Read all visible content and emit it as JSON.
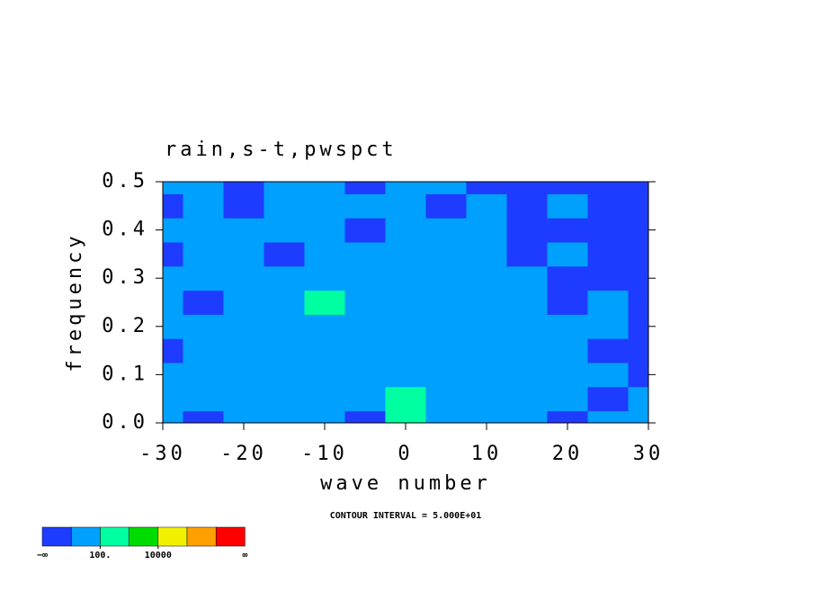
{
  "chart_data": {
    "type": "contour",
    "title": "rain,s-t,pwspct",
    "xlabel": "wave number",
    "ylabel": "frequency",
    "annotation": "CONTOUR INTERVAL = 5.000E+01",
    "x": [
      -30,
      -25,
      -20,
      -15,
      -10,
      -5,
      0,
      5,
      10,
      15,
      20,
      25,
      30
    ],
    "y": [
      0,
      0.05,
      0.1,
      0.15,
      0.2,
      0.25,
      0.3,
      0.35,
      0.4,
      0.45,
      0.5
    ],
    "z": [
      [
        30,
        5,
        40,
        30,
        40,
        5,
        150,
        40,
        40,
        40,
        5,
        40,
        30
      ],
      [
        40,
        40,
        40,
        40,
        40,
        40,
        150,
        40,
        40,
        40,
        40,
        5,
        40
      ],
      [
        40,
        40,
        40,
        40,
        40,
        40,
        40,
        80,
        40,
        40,
        40,
        40,
        5
      ],
      [
        5,
        40,
        40,
        40,
        40,
        40,
        40,
        40,
        40,
        40,
        40,
        5,
        5
      ],
      [
        40,
        40,
        40,
        40,
        40,
        40,
        80,
        40,
        40,
        40,
        40,
        40,
        5
      ],
      [
        40,
        5,
        40,
        40,
        150,
        40,
        40,
        40,
        40,
        40,
        5,
        40,
        5
      ],
      [
        40,
        40,
        80,
        40,
        40,
        40,
        40,
        40,
        40,
        40,
        5,
        5,
        5
      ],
      [
        5,
        40,
        40,
        5,
        40,
        40,
        40,
        40,
        40,
        5,
        40,
        5,
        5
      ],
      [
        40,
        80,
        40,
        40,
        40,
        5,
        40,
        40,
        40,
        5,
        5,
        5,
        5
      ],
      [
        5,
        40,
        5,
        40,
        40,
        40,
        40,
        5,
        40,
        5,
        40,
        5,
        5
      ],
      [
        40,
        40,
        5,
        40,
        40,
        5,
        40,
        40,
        5,
        5,
        5,
        5,
        5
      ]
    ],
    "xlim": [
      -30,
      30
    ],
    "ylim": [
      0,
      0.5
    ],
    "xticks": [
      -30,
      -20,
      -10,
      0,
      10,
      20,
      30
    ],
    "yticks": [
      {
        "value": 0,
        "label": "0.0"
      },
      {
        "value": 0.1,
        "label": "0.1"
      },
      {
        "value": 0.2,
        "label": "0.2"
      },
      {
        "value": 0.3,
        "label": "0.3"
      },
      {
        "value": 0.4,
        "label": "0.4"
      },
      {
        "value": 0.5,
        "label": "0.5"
      }
    ],
    "levels": [
      10,
      100,
      1000,
      10000,
      100000,
      1000000
    ],
    "colors": [
      "#1e3cff",
      "#00a0ff",
      "#00ffa0",
      "#00dc00",
      "#f0f000",
      "#ffa000",
      "#ff0000"
    ],
    "colorbar_ticks": [
      {
        "value": 100,
        "label": "100."
      },
      {
        "value": 10000,
        "label": "10000"
      }
    ],
    "colorbar_ends": [
      "−∞",
      "∞"
    ]
  }
}
